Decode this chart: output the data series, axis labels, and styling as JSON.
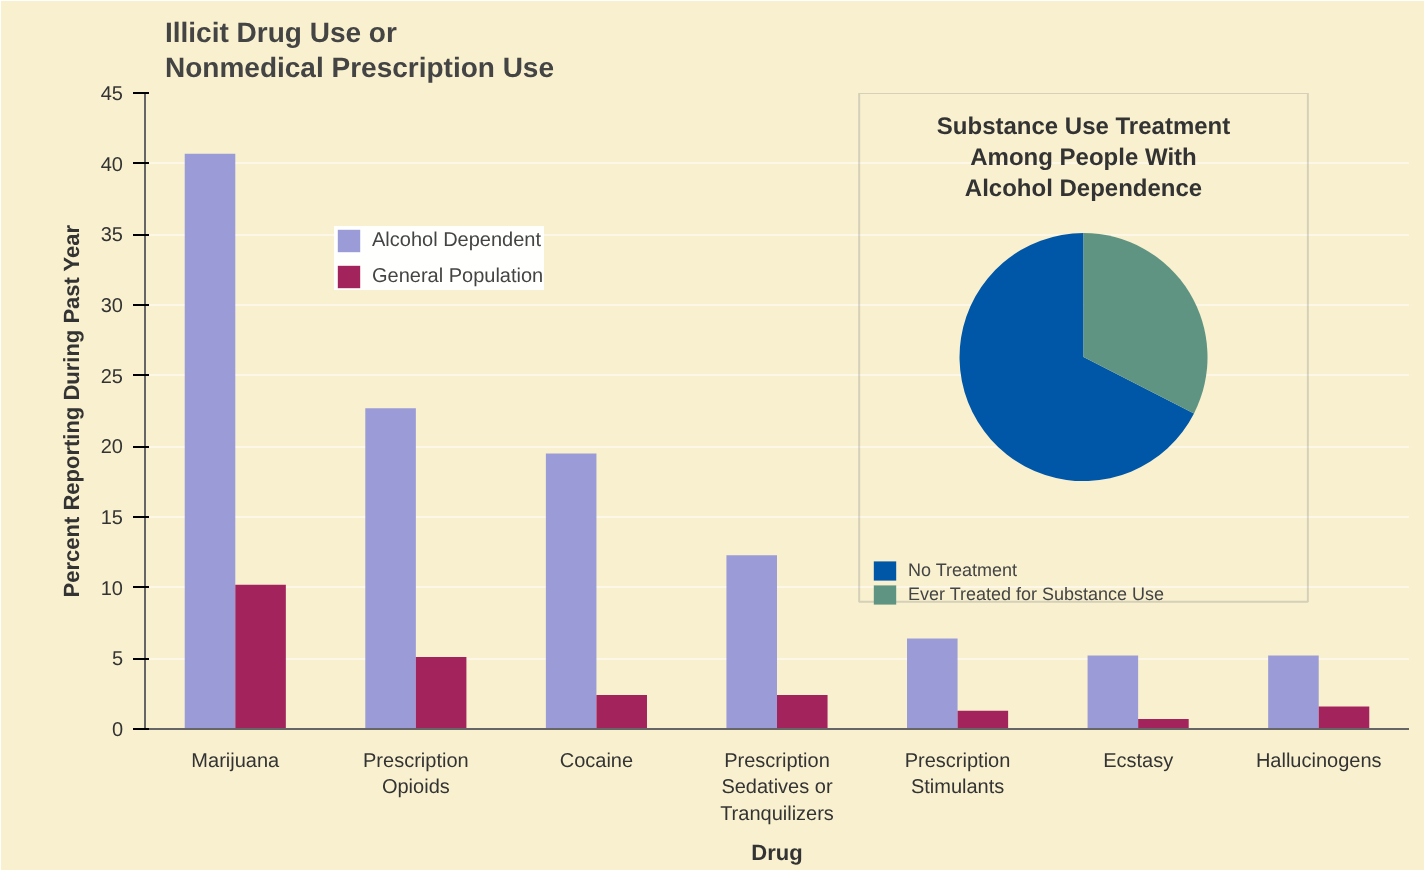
{
  "chart_data": [
    {
      "type": "bar",
      "title": "Illicit Drug Use or\nNonmedical Prescription Use",
      "xlabel": "Drug",
      "ylabel": "Percent Reporting During Past Year",
      "categories": [
        "Marijuana",
        "Prescription\nOpioids",
        "Cocaine",
        "Prescription\nSedatives or\nTranquilizers",
        "Prescription\nStimulants",
        "Ecstasy",
        "Hallucinogens"
      ],
      "series": [
        {
          "name": "Alcohol Dependent",
          "color": "#9b9bd8",
          "values": [
            40.7,
            22.7,
            19.5,
            12.3,
            6.4,
            5.2,
            5.2
          ]
        },
        {
          "name": "General Population",
          "color": "#a3245c",
          "values": [
            10.2,
            5.1,
            2.4,
            2.4,
            1.3,
            0.7,
            1.6
          ]
        }
      ],
      "ylim": [
        0,
        45
      ],
      "yticks": [
        0,
        5,
        10,
        15,
        20,
        25,
        30,
        35,
        40,
        45
      ],
      "legend": "top",
      "grid": "y"
    },
    {
      "type": "pie",
      "title": "Substance Use Treatment\nAmong People With\nAlcohol Dependence",
      "categories": [
        "No Treatment",
        "Ever Treated for Substance Use"
      ],
      "values": [
        67.5,
        32.5
      ],
      "colors": [
        "#0057a8",
        "#5f9483"
      ],
      "legend": "bottom"
    }
  ]
}
